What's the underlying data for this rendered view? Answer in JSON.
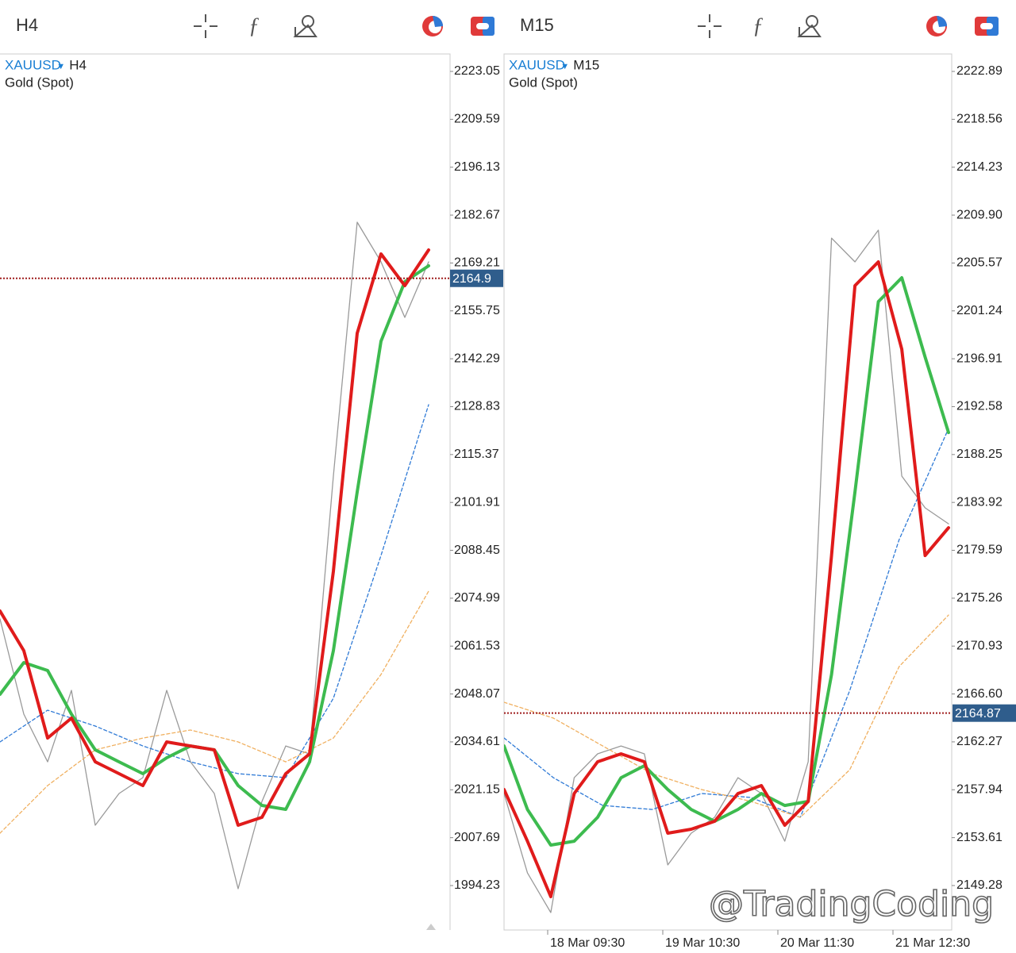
{
  "panels": [
    {
      "timeframe": "H4",
      "symbol": "XAUUSD",
      "period": "H4",
      "name": "Gold (Spot)",
      "ylim": [
        1981.74,
        2227.96
      ],
      "yticks": [
        2223.05,
        2209.59,
        2196.13,
        2182.67,
        2169.21,
        2155.75,
        2142.29,
        2128.83,
        2115.37,
        2101.91,
        2088.45,
        2074.99,
        2061.53,
        2048.07,
        2034.61,
        2021.15,
        2007.69,
        1994.23
      ],
      "price": 2164.9,
      "series": [
        {
          "color": "#9a9a9a",
          "style": "solid",
          "values": [
            2069.16,
            2042.4,
            2029.01,
            2049.09,
            2011.17,
            2020.09,
            2024.55,
            2049.09,
            2029.01,
            2020.09,
            1993.33,
            2017.86,
            2033.47,
            2031.24,
            2109.3,
            2180.67,
            2169.52,
            2153.91,
            2169.52
          ]
        },
        {
          "color": "#2f7ad6",
          "style": "dashed",
          "values": [
            2034.59,
            2043.51,
            2039.05,
            2033.47,
            2029.01,
            2025.67,
            2024.55,
            2046.86,
            2087.0,
            2129.38
          ]
        },
        {
          "color": "#f0b060",
          "style": "dashed",
          "values": [
            2008.94,
            2022.32,
            2032.36,
            2035.7,
            2037.94,
            2034.59,
            2029.01,
            2035.7,
            2053.55,
            2076.97
          ]
        },
        {
          "color": "#3dbb4f",
          "style": "solid",
          "values": [
            2047.97,
            2056.89,
            2054.66,
            2042.4,
            2032.36,
            2029.01,
            2025.67,
            2030.13,
            2033.47,
            2032.36,
            2022.32,
            2016.75,
            2015.63,
            2029.01,
            2060.24,
            2104.84,
            2147.22,
            2163.95,
            2168.41
          ]
        },
        {
          "color": "#e01b1b",
          "style": "solid",
          "values": [
            2071.39,
            2060.24,
            2035.7,
            2041.28,
            2029.01,
            2025.67,
            2022.32,
            2034.59,
            2033.47,
            2032.36,
            2011.17,
            2013.4,
            2025.67,
            2031.24,
            2082.54,
            2149.45,
            2171.75,
            2162.83,
            2172.87
          ]
        }
      ]
    },
    {
      "timeframe": "M15",
      "symbol": "XAUUSD",
      "period": "M15",
      "name": "Gold (Spot)",
      "ylim": [
        2145.26,
        2224.47
      ],
      "yticks": [
        2222.89,
        2218.56,
        2214.23,
        {
          "value": 2209.9,
          "label": "2209.90"
        },
        2205.57,
        2201.24,
        2196.91,
        2192.58,
        2188.25,
        2183.92,
        2179.59,
        2175.26,
        2170.93,
        {
          "value": 2166.6,
          "label": "2166.60"
        },
        2162.27,
        2157.94,
        2153.61,
        2149.28
      ],
      "price": 2164.87,
      "xlabels": [
        "18 Mar 09:30",
        "19 Mar 10:30",
        "20 Mar 11:30",
        "21 Mar 12:30"
      ],
      "series": [
        {
          "color": "#9a9a9a",
          "style": "solid",
          "values": [
            2157.6,
            2150.42,
            2146.84,
            2159.03,
            2161.19,
            2161.9,
            2161.19,
            2151.14,
            2154.01,
            2155.45,
            2159.03,
            2157.6,
            2153.29,
            2160.47,
            2207.82,
            2205.67,
            2208.54,
            2186.3,
            2183.43,
            2181.99
          ]
        },
        {
          "color": "#2f7ad6",
          "style": "dashed",
          "values": [
            2162.62,
            2159.03,
            2156.52,
            2156.16,
            2157.6,
            2157.24,
            2155.45,
            2166.93,
            2180.56,
            2190.6
          ]
        },
        {
          "color": "#f0b060",
          "style": "dashed",
          "values": [
            2165.85,
            2164.42,
            2161.9,
            2159.39,
            2157.96,
            2156.88,
            2155.45,
            2159.75,
            2169.08,
            2173.74
          ]
        },
        {
          "color": "#3dbb4f",
          "style": "solid",
          "values": [
            2161.9,
            2156.16,
            2152.94,
            2153.29,
            2155.45,
            2159.03,
            2160.11,
            2157.96,
            2156.16,
            2155.09,
            2156.16,
            2157.6,
            2156.52,
            2156.88,
            2168.36,
            2184.86,
            2202.08,
            2204.24,
            2197.06,
            2190.24
          ]
        },
        {
          "color": "#e01b1b",
          "style": "solid",
          "values": [
            2157.96,
            2153.29,
            2148.27,
            2157.6,
            2160.47,
            2161.19,
            2160.47,
            2154.01,
            2154.37,
            2155.09,
            2157.6,
            2158.32,
            2154.73,
            2156.88,
            2179.12,
            2203.52,
            2205.67,
            2197.78,
            2179.12,
            2181.63
          ]
        }
      ]
    }
  ],
  "watermark": "@TradingCoding"
}
